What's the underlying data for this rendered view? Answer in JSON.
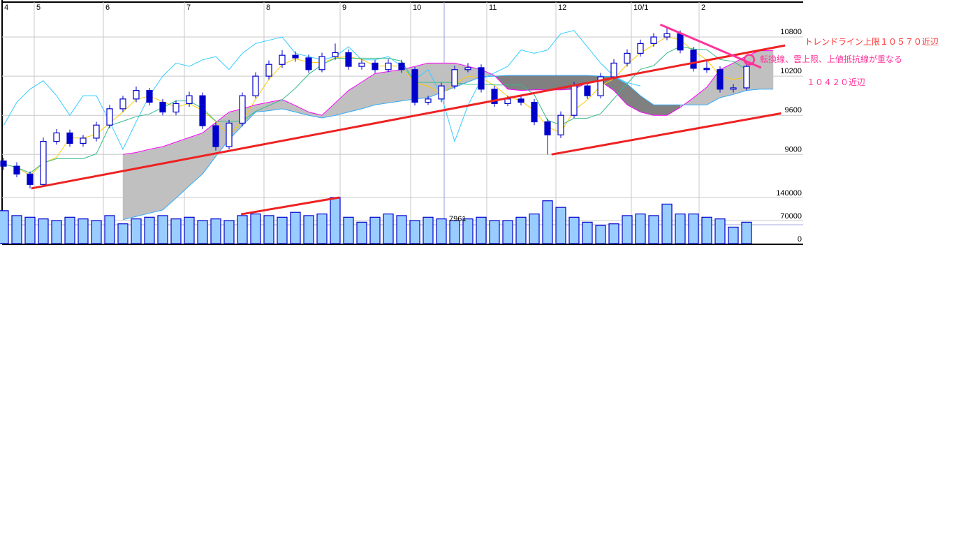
{
  "chart_data": {
    "type": "candlestick",
    "x_tick_labels": [
      "4",
      "5",
      "6",
      "7",
      "8",
      "9",
      "10",
      "11",
      "12",
      "10/1",
      "2"
    ],
    "price_axis": {
      "ticks": [
        10800,
        10200,
        9600,
        9000
      ],
      "range": [
        7950,
        11340
      ]
    },
    "volume_axis": {
      "ticks": [
        140000,
        70000,
        0
      ],
      "range": [
        0,
        140000
      ]
    },
    "grid": true,
    "crosshair_label": "7961",
    "candles": [
      [
        8900,
        8950,
        8760,
        8820
      ],
      [
        8820,
        8880,
        8650,
        8700
      ],
      [
        8700,
        8740,
        8480,
        8540
      ],
      [
        8540,
        9260,
        8520,
        9200
      ],
      [
        9200,
        9390,
        9150,
        9330
      ],
      [
        9330,
        9380,
        9120,
        9170
      ],
      [
        9170,
        9300,
        9120,
        9250
      ],
      [
        9250,
        9500,
        9200,
        9450
      ],
      [
        9450,
        9760,
        9400,
        9700
      ],
      [
        9700,
        9900,
        9650,
        9850
      ],
      [
        9850,
        10040,
        9800,
        9980
      ],
      [
        9980,
        10020,
        9750,
        9800
      ],
      [
        9800,
        9850,
        9600,
        9650
      ],
      [
        9650,
        9830,
        9600,
        9780
      ],
      [
        9780,
        9960,
        9730,
        9900
      ],
      [
        9900,
        9950,
        9390,
        9440
      ],
      [
        9440,
        9490,
        9060,
        9120
      ],
      [
        9120,
        9530,
        9080,
        9480
      ],
      [
        9480,
        9950,
        9430,
        9900
      ],
      [
        9900,
        10260,
        9860,
        10200
      ],
      [
        10200,
        10440,
        10150,
        10380
      ],
      [
        10380,
        10600,
        10330,
        10520
      ],
      [
        10520,
        10580,
        10420,
        10480
      ],
      [
        10480,
        10530,
        10250,
        10300
      ],
      [
        10300,
        10560,
        10260,
        10500
      ],
      [
        10500,
        10700,
        10450,
        10560
      ],
      [
        10560,
        10610,
        10300,
        10350
      ],
      [
        10350,
        10460,
        10300,
        10400
      ],
      [
        10400,
        10450,
        10250,
        10300
      ],
      [
        10300,
        10460,
        10260,
        10400
      ],
      [
        10400,
        10450,
        10250,
        10300
      ],
      [
        10300,
        10340,
        9750,
        9800
      ],
      [
        9800,
        9900,
        9760,
        9850
      ],
      [
        9850,
        10100,
        9800,
        10050
      ],
      [
        10050,
        10360,
        10000,
        10300
      ],
      [
        10300,
        10400,
        10260,
        10330
      ],
      [
        10330,
        10380,
        9950,
        10000
      ],
      [
        10000,
        10050,
        9730,
        9780
      ],
      [
        9780,
        9900,
        9740,
        9850
      ],
      [
        9850,
        9900,
        9750,
        9800
      ],
      [
        9800,
        9850,
        9450,
        9500
      ],
      [
        9500,
        9550,
        9000,
        9300
      ],
      [
        9300,
        9660,
        9250,
        9600
      ],
      [
        9600,
        10110,
        9560,
        10050
      ],
      [
        10050,
        10100,
        9850,
        9900
      ],
      [
        9900,
        10250,
        9860,
        10190
      ],
      [
        10190,
        10460,
        10150,
        10400
      ],
      [
        10400,
        10610,
        10350,
        10550
      ],
      [
        10550,
        10760,
        10500,
        10700
      ],
      [
        10700,
        10860,
        10650,
        10800
      ],
      [
        10800,
        10960,
        10750,
        10850
      ],
      [
        10850,
        10900,
        10550,
        10600
      ],
      [
        10600,
        10650,
        10270,
        10320
      ],
      [
        10320,
        10450,
        10250,
        10300
      ],
      [
        10300,
        10350,
        9950,
        10000
      ],
      [
        10000,
        10080,
        9950,
        10020
      ],
      [
        10020,
        10420,
        9980,
        10350
      ]
    ],
    "volume": [
      100000,
      85000,
      80000,
      75000,
      70000,
      80000,
      75000,
      70000,
      85000,
      60000,
      75000,
      80000,
      85000,
      75000,
      80000,
      70000,
      75000,
      70000,
      85000,
      90000,
      85000,
      80000,
      95000,
      85000,
      90000,
      140000,
      80000,
      65000,
      80000,
      90000,
      85000,
      70000,
      80000,
      75000,
      70000,
      75000,
      80000,
      70000,
      70000,
      80000,
      90000,
      130000,
      110000,
      80000,
      65000,
      55000,
      60000,
      85000,
      90000,
      85000,
      120000,
      90000,
      90000,
      80000,
      75000,
      50000,
      65000
    ],
    "chikou_span": [
      9440,
      9800,
      10000,
      10130,
      9900,
      9600,
      9900,
      9900,
      9500,
      9080,
      9500,
      9900,
      10200,
      10400,
      10350,
      10450,
      10500,
      10300,
      10550,
      10700,
      10750,
      10800,
      10550,
      10500,
      10450,
      10500,
      10650,
      10450,
      10450,
      10500,
      10350,
      10150,
      10300,
      9900,
      9200,
      9750,
      10150,
      10250,
      10350,
      10600,
      10550,
      10600,
      10850,
      10900,
      10650,
      10400,
      10200,
      10100,
      10050
    ],
    "cloud_start_index": 9,
    "senkou_span_a": [
      9000,
      9030,
      9080,
      9120,
      9190,
      9260,
      9330,
      9490,
      9650,
      9700,
      9760,
      9800,
      9840,
      9750,
      9650,
      9600,
      9790,
      9980,
      10110,
      10240,
      10270,
      10300,
      10350,
      10400,
      10400,
      10400,
      10350,
      10300,
      10210,
      10000,
      9980,
      9990,
      9990,
      9990,
      10000,
      10100,
      10120,
      9980,
      9760,
      9650,
      9600,
      9600,
      9720,
      9870,
      10030,
      10300,
      10400,
      10510,
      10590,
      10590
    ],
    "senkou_span_b": [
      8000,
      8050,
      8100,
      8150,
      8330,
      8520,
      8700,
      8970,
      9230,
      9440,
      9650,
      9670,
      9700,
      9650,
      9600,
      9560,
      9600,
      9650,
      9700,
      9760,
      9790,
      9820,
      9850,
      9870,
      9950,
      10030,
      10110,
      10190,
      10200,
      10210,
      10210,
      10210,
      10210,
      10210,
      10210,
      10210,
      10200,
      10190,
      10080,
      9900,
      9760,
      9760,
      9760,
      9760,
      9760,
      9870,
      9920,
      9980,
      10000,
      10000
    ],
    "trendlines": [
      {
        "from": [
          2.1,
          8480
        ],
        "to": [
          58.9,
          10670
        ],
        "color": "#ee2222"
      },
      {
        "from": [
          41.3,
          9000
        ],
        "to": [
          58.6,
          9630
        ],
        "color": "#ee2222"
      },
      {
        "from": [
          49.5,
          10990
        ],
        "to": [
          57.1,
          10330
        ],
        "color": "#ff3399"
      }
    ],
    "volume_trendline": {
      "from": [
        17.9,
        89000
      ],
      "to": [
        25.3,
        140000
      ],
      "color": "#ee2222"
    },
    "marker_circle": {
      "index": 56.2,
      "price": 10420,
      "color": "#ff3399"
    },
    "colors": {
      "candle": "#0000cc",
      "tenkan": "#ffcc00",
      "kijun": "#33bb88",
      "chikou": "#33ccff",
      "span_a": "#ff00ff",
      "span_b": "#33aaff",
      "cloud_light": "#c0c0c0",
      "cloud_dark": "#808080",
      "volume_fill": "#99ccff",
      "volume_edge": "#0000cc"
    }
  },
  "annotations": {
    "trendline_upper": "トレンドライン上限１０５７０近辺",
    "overlap_note": "転換線、雲上限、上値抵抗線が重なる",
    "overlap_level": "１０４２０近辺"
  }
}
